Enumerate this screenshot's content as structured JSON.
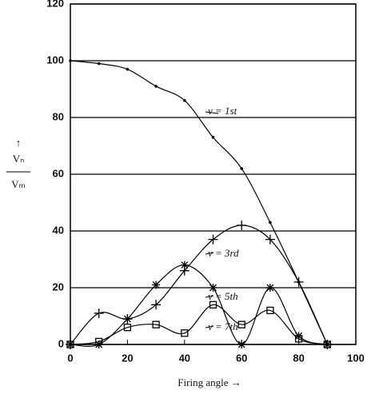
{
  "chart_data": {
    "type": "line",
    "xlabel": "Firing angle →",
    "ylabel": {
      "arrow": "↑",
      "numerator": "Vₙ",
      "denominator": "Vₘ"
    },
    "x": [
      0,
      10,
      20,
      30,
      40,
      50,
      60,
      70,
      80,
      90
    ],
    "series": [
      {
        "name": "ν = 1st",
        "color": "#000000",
        "marker": "dot",
        "values": [
          100,
          99,
          97,
          91,
          86,
          73,
          62,
          43,
          22,
          0
        ]
      },
      {
        "name": "ν = 3rd",
        "color": "#000000",
        "marker": "plus",
        "values": [
          0,
          11,
          9,
          14,
          26,
          37,
          42,
          37,
          22,
          0
        ]
      },
      {
        "name": "ν = 5th",
        "color": "#000000",
        "marker": "star",
        "values": [
          0,
          0,
          9,
          21,
          28,
          20,
          0,
          20,
          3,
          0
        ]
      },
      {
        "name": "ν = 7th",
        "color": "#000000",
        "marker": "square",
        "values": [
          0,
          1,
          6,
          7,
          4,
          14,
          7,
          12,
          2,
          0
        ]
      }
    ],
    "xlim": [
      0,
      100
    ],
    "xticks": [
      0,
      20,
      40,
      60,
      80,
      100
    ],
    "ylim": [
      0,
      120
    ],
    "yticks": [
      0,
      20,
      40,
      60,
      80,
      100,
      120
    ],
    "grid": true
  }
}
